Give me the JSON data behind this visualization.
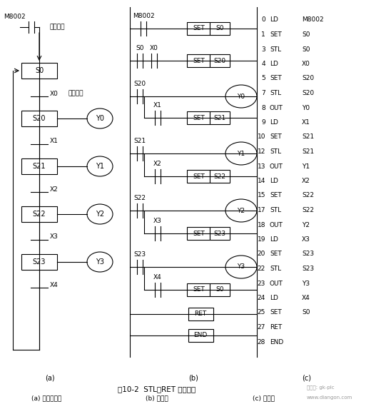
{
  "title": "图10-2  STL、RET 指令应用",
  "subtitle_a": "(a) 顺序功能图",
  "subtitle_b": "(b) 梯形图",
  "subtitle_c": "(c) 语句表",
  "watermark1": "微信号: gk-plc",
  "watermark2": "www.diangon.com",
  "bg_color": "#ffffff",
  "figsize": [
    5.48,
    5.73
  ],
  "dpi": 100,
  "section_c_lines": [
    [
      "0",
      "LD",
      "M8002"
    ],
    [
      "1",
      "SET",
      "S0"
    ],
    [
      "3",
      "STL",
      "S0"
    ],
    [
      "4",
      "LD",
      "X0"
    ],
    [
      "5",
      "SET",
      "S20"
    ],
    [
      "7",
      "STL",
      "S20"
    ],
    [
      "8",
      "OUT",
      "Y0"
    ],
    [
      "9",
      "LD",
      "X1"
    ],
    [
      "10",
      "SET",
      "S21"
    ],
    [
      "12",
      "STL",
      "S21"
    ],
    [
      "13",
      "OUT",
      "Y1"
    ],
    [
      "14",
      "LD",
      "X2"
    ],
    [
      "15",
      "SET",
      "S22"
    ],
    [
      "17",
      "STL",
      "S22"
    ],
    [
      "18",
      "OUT",
      "Y2"
    ],
    [
      "19",
      "LD",
      "X3"
    ],
    [
      "20",
      "SET",
      "S23"
    ],
    [
      "22",
      "STL",
      "S23"
    ],
    [
      "23",
      "OUT",
      "Y3"
    ],
    [
      "24",
      "LD",
      "X4"
    ],
    [
      "25",
      "SET",
      "S0"
    ],
    [
      "27",
      "RET",
      ""
    ],
    [
      "28",
      "END",
      ""
    ]
  ]
}
